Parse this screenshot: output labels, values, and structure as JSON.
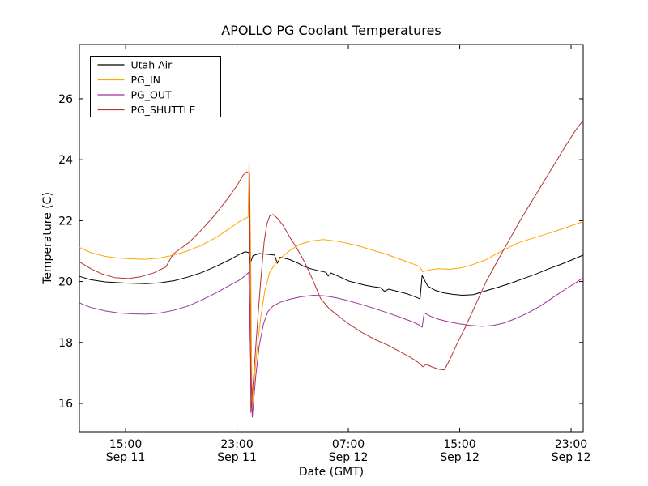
{
  "title": "APOLLO PG Coolant Temperatures",
  "chart_data": {
    "type": "line",
    "title": "APOLLO PG Coolant Temperatures",
    "xlabel": "Date (GMT)",
    "ylabel": "Temperature (C)",
    "grid": false,
    "legend_position": "upper left",
    "x_unit": "hours since Sep 11 00:00 GMT",
    "xlim": [
      11.68,
      47.87
    ],
    "ylim": [
      15.07,
      27.78
    ],
    "yticks": [
      16,
      18,
      20,
      22,
      24,
      26
    ],
    "xticks": [
      {
        "value": 15,
        "time": "15:00",
        "date": "Sep 11"
      },
      {
        "value": 23,
        "time": "23:00",
        "date": "Sep 11"
      },
      {
        "value": 31,
        "time": "07:00",
        "date": "Sep 12"
      },
      {
        "value": 39,
        "time": "15:00",
        "date": "Sep 12"
      },
      {
        "value": 47,
        "time": "23:00",
        "date": "Sep 12"
      }
    ],
    "series": [
      {
        "name": "Utah Air",
        "color": "#000000",
        "points": [
          [
            11.68,
            20.17
          ],
          [
            12.5,
            20.06
          ],
          [
            13.5,
            19.99
          ],
          [
            15.0,
            19.95
          ],
          [
            16.5,
            19.93
          ],
          [
            17.5,
            19.96
          ],
          [
            18.5,
            20.03
          ],
          [
            19.5,
            20.15
          ],
          [
            20.5,
            20.3
          ],
          [
            21.5,
            20.5
          ],
          [
            22.5,
            20.72
          ],
          [
            23.2,
            20.9
          ],
          [
            23.6,
            20.98
          ],
          [
            23.85,
            20.95
          ],
          [
            23.95,
            20.6
          ],
          [
            24.15,
            20.85
          ],
          [
            24.6,
            20.92
          ],
          [
            25.1,
            20.9
          ],
          [
            25.7,
            20.87
          ],
          [
            25.9,
            20.6
          ],
          [
            26.1,
            20.8
          ],
          [
            26.8,
            20.72
          ],
          [
            27.4,
            20.6
          ],
          [
            27.8,
            20.5
          ],
          [
            28.3,
            20.42
          ],
          [
            28.9,
            20.35
          ],
          [
            29.4,
            20.3
          ],
          [
            29.55,
            20.18
          ],
          [
            29.75,
            20.28
          ],
          [
            30.4,
            20.15
          ],
          [
            31.0,
            20.02
          ],
          [
            31.6,
            19.95
          ],
          [
            32.2,
            19.88
          ],
          [
            32.8,
            19.83
          ],
          [
            33.3,
            19.8
          ],
          [
            33.6,
            19.68
          ],
          [
            33.9,
            19.75
          ],
          [
            34.5,
            19.68
          ],
          [
            35.2,
            19.6
          ],
          [
            35.8,
            19.5
          ],
          [
            36.15,
            19.43
          ],
          [
            36.3,
            20.2
          ],
          [
            36.7,
            19.85
          ],
          [
            37.2,
            19.72
          ],
          [
            37.8,
            19.63
          ],
          [
            38.5,
            19.58
          ],
          [
            39.2,
            19.55
          ],
          [
            40.0,
            19.57
          ],
          [
            40.9,
            19.7
          ],
          [
            41.8,
            19.82
          ],
          [
            42.7,
            19.95
          ],
          [
            43.6,
            20.1
          ],
          [
            44.5,
            20.25
          ],
          [
            45.4,
            20.42
          ],
          [
            46.3,
            20.57
          ],
          [
            47.1,
            20.72
          ],
          [
            47.87,
            20.87
          ]
        ]
      },
      {
        "name": "PG_IN",
        "color": "#ffa500",
        "points": [
          [
            11.68,
            21.12
          ],
          [
            12.5,
            20.95
          ],
          [
            13.5,
            20.83
          ],
          [
            14.3,
            20.78
          ],
          [
            15.2,
            20.75
          ],
          [
            16.4,
            20.73
          ],
          [
            17.4,
            20.77
          ],
          [
            18.4,
            20.86
          ],
          [
            19.4,
            21.0
          ],
          [
            20.4,
            21.18
          ],
          [
            21.4,
            21.42
          ],
          [
            22.4,
            21.72
          ],
          [
            23.2,
            21.98
          ],
          [
            23.8,
            22.12
          ],
          [
            23.87,
            24.0
          ],
          [
            23.97,
            21.5
          ],
          [
            24.08,
            15.85
          ],
          [
            24.4,
            17.6
          ],
          [
            24.7,
            18.8
          ],
          [
            25.0,
            19.7
          ],
          [
            25.35,
            20.3
          ],
          [
            25.8,
            20.62
          ],
          [
            26.2,
            20.8
          ],
          [
            26.8,
            21.02
          ],
          [
            27.5,
            21.22
          ],
          [
            28.3,
            21.33
          ],
          [
            29.2,
            21.38
          ],
          [
            30.1,
            21.33
          ],
          [
            31.0,
            21.25
          ],
          [
            31.9,
            21.15
          ],
          [
            32.8,
            21.02
          ],
          [
            33.7,
            20.9
          ],
          [
            34.6,
            20.75
          ],
          [
            35.4,
            20.62
          ],
          [
            36.1,
            20.5
          ],
          [
            36.35,
            20.32
          ],
          [
            36.8,
            20.38
          ],
          [
            37.5,
            20.42
          ],
          [
            38.3,
            20.4
          ],
          [
            39.1,
            20.45
          ],
          [
            39.9,
            20.55
          ],
          [
            40.9,
            20.72
          ],
          [
            42.0,
            21.0
          ],
          [
            43.2,
            21.27
          ],
          [
            44.3,
            21.43
          ],
          [
            45.5,
            21.6
          ],
          [
            46.5,
            21.75
          ],
          [
            47.3,
            21.88
          ],
          [
            47.87,
            21.97
          ]
        ]
      },
      {
        "name": "PG_OUT",
        "color": "#9b359b",
        "points": [
          [
            11.68,
            19.3
          ],
          [
            12.5,
            19.15
          ],
          [
            13.5,
            19.04
          ],
          [
            14.5,
            18.97
          ],
          [
            15.5,
            18.94
          ],
          [
            16.5,
            18.93
          ],
          [
            17.5,
            18.97
          ],
          [
            18.5,
            19.06
          ],
          [
            19.5,
            19.2
          ],
          [
            20.5,
            19.4
          ],
          [
            21.5,
            19.63
          ],
          [
            22.5,
            19.88
          ],
          [
            23.3,
            20.08
          ],
          [
            23.85,
            20.3
          ],
          [
            23.95,
            18.0
          ],
          [
            24.1,
            15.55
          ],
          [
            24.35,
            16.9
          ],
          [
            24.6,
            17.9
          ],
          [
            24.9,
            18.6
          ],
          [
            25.2,
            19.0
          ],
          [
            25.6,
            19.2
          ],
          [
            26.1,
            19.32
          ],
          [
            26.8,
            19.42
          ],
          [
            27.6,
            19.5
          ],
          [
            28.5,
            19.55
          ],
          [
            29.3,
            19.53
          ],
          [
            30.1,
            19.47
          ],
          [
            30.9,
            19.38
          ],
          [
            31.7,
            19.28
          ],
          [
            32.5,
            19.17
          ],
          [
            33.3,
            19.05
          ],
          [
            34.1,
            18.93
          ],
          [
            34.9,
            18.8
          ],
          [
            35.6,
            18.68
          ],
          [
            36.1,
            18.57
          ],
          [
            36.3,
            18.5
          ],
          [
            36.45,
            18.97
          ],
          [
            36.9,
            18.86
          ],
          [
            37.5,
            18.76
          ],
          [
            38.2,
            18.68
          ],
          [
            39.0,
            18.61
          ],
          [
            39.8,
            18.56
          ],
          [
            40.6,
            18.53
          ],
          [
            41.4,
            18.56
          ],
          [
            42.2,
            18.64
          ],
          [
            43.0,
            18.78
          ],
          [
            43.9,
            18.97
          ],
          [
            44.8,
            19.2
          ],
          [
            45.7,
            19.48
          ],
          [
            46.6,
            19.75
          ],
          [
            47.3,
            19.95
          ],
          [
            47.87,
            20.13
          ]
        ]
      },
      {
        "name": "PG_SHUTTLE",
        "color": "#b23434",
        "points": [
          [
            11.68,
            20.65
          ],
          [
            12.5,
            20.42
          ],
          [
            13.3,
            20.25
          ],
          [
            14.2,
            20.13
          ],
          [
            15.2,
            20.1
          ],
          [
            16.1,
            20.16
          ],
          [
            17.0,
            20.28
          ],
          [
            17.9,
            20.48
          ],
          [
            18.4,
            20.9
          ],
          [
            19.0,
            21.1
          ],
          [
            19.6,
            21.3
          ],
          [
            20.5,
            21.72
          ],
          [
            21.4,
            22.18
          ],
          [
            22.3,
            22.7
          ],
          [
            23.0,
            23.15
          ],
          [
            23.45,
            23.5
          ],
          [
            23.7,
            23.6
          ],
          [
            23.9,
            23.55
          ],
          [
            24.0,
            15.7
          ],
          [
            24.2,
            16.9
          ],
          [
            24.45,
            18.5
          ],
          [
            24.7,
            20.0
          ],
          [
            24.95,
            21.3
          ],
          [
            25.15,
            21.9
          ],
          [
            25.35,
            22.15
          ],
          [
            25.6,
            22.2
          ],
          [
            25.9,
            22.08
          ],
          [
            26.3,
            21.85
          ],
          [
            26.8,
            21.45
          ],
          [
            27.3,
            21.1
          ],
          [
            27.9,
            20.6
          ],
          [
            28.4,
            20.1
          ],
          [
            29.0,
            19.45
          ],
          [
            29.6,
            19.12
          ],
          [
            30.2,
            18.9
          ],
          [
            31.0,
            18.62
          ],
          [
            31.9,
            18.35
          ],
          [
            32.9,
            18.1
          ],
          [
            33.8,
            17.92
          ],
          [
            34.7,
            17.7
          ],
          [
            35.5,
            17.5
          ],
          [
            36.1,
            17.32
          ],
          [
            36.35,
            17.2
          ],
          [
            36.6,
            17.28
          ],
          [
            37.0,
            17.2
          ],
          [
            37.5,
            17.12
          ],
          [
            37.9,
            17.1
          ],
          [
            38.3,
            17.45
          ],
          [
            38.8,
            17.95
          ],
          [
            39.4,
            18.5
          ],
          [
            40.1,
            19.2
          ],
          [
            40.9,
            20.0
          ],
          [
            41.8,
            20.75
          ],
          [
            42.6,
            21.4
          ],
          [
            43.4,
            22.05
          ],
          [
            44.2,
            22.65
          ],
          [
            45.0,
            23.25
          ],
          [
            45.8,
            23.85
          ],
          [
            46.6,
            24.45
          ],
          [
            47.3,
            24.95
          ],
          [
            47.87,
            25.3
          ]
        ]
      }
    ]
  }
}
